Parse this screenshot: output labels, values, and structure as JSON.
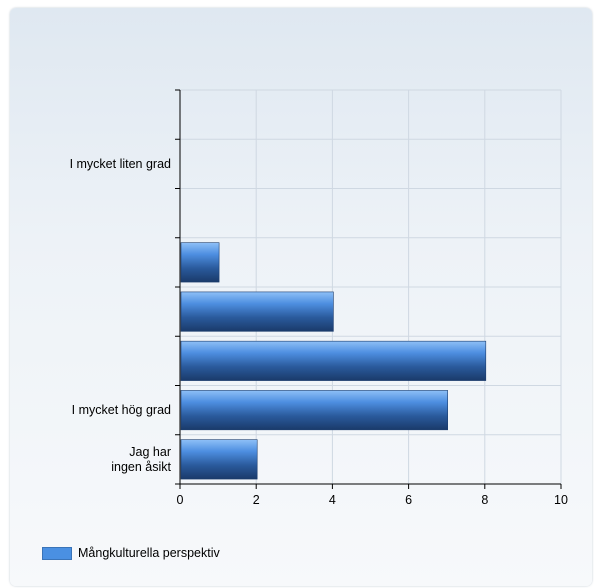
{
  "chart_data": {
    "type": "bar",
    "orientation": "horizontal",
    "categories": [
      "I mycket liten grad",
      "",
      "",
      "",
      "",
      "I mycket hög grad",
      "Jag har ingen åsikt"
    ],
    "series": [
      {
        "name": "Mångkulturella perspektiv",
        "values": [
          0,
          0,
          1,
          4,
          8,
          7,
          2
        ],
        "color": "#4a90e2"
      }
    ],
    "xlim": [
      0,
      10
    ],
    "xticks": [
      0,
      2,
      4,
      6,
      8,
      10
    ],
    "grid": true,
    "legend": "bottom-left"
  }
}
